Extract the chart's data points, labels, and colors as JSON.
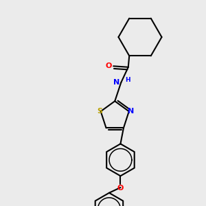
{
  "background_color": "#ebebeb",
  "figure_size": [
    3.0,
    3.0
  ],
  "dpi": 100,
  "bond_color": "#000000",
  "bond_lw": 1.5,
  "N_color": "#0000ff",
  "S_color": "#b8a000",
  "O_color": "#ff0000",
  "font_size": 7.5,
  "font_size_h": 6.5,
  "xlim": [
    0,
    10
  ],
  "ylim": [
    0,
    10
  ]
}
